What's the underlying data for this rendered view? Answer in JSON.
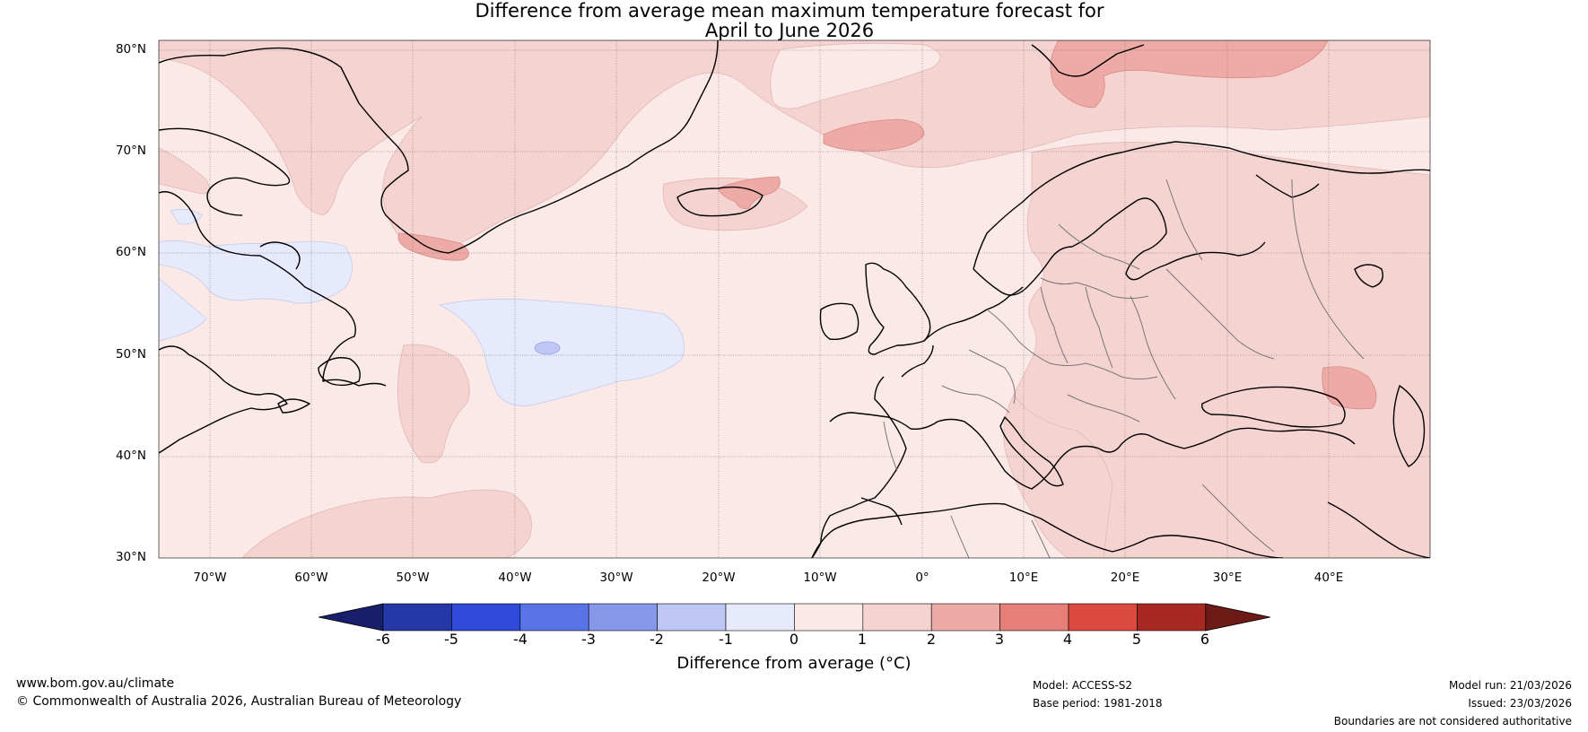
{
  "title": {
    "line1": "Difference from average mean maximum temperature forecast for",
    "line2": "April to June 2026"
  },
  "axes": {
    "lat_labels": [
      "80°N",
      "70°N",
      "60°N",
      "50°N",
      "40°N",
      "30°N"
    ],
    "lon_labels": [
      "70°W",
      "60°W",
      "50°W",
      "40°W",
      "30°W",
      "20°W",
      "10°W",
      "0°",
      "10°E",
      "20°E",
      "30°E",
      "40°E"
    ]
  },
  "colorbar": {
    "ticks": [
      "-6",
      "-5",
      "-4",
      "-3",
      "-2",
      "-1",
      "0",
      "1",
      "2",
      "3",
      "4",
      "5",
      "6"
    ],
    "label": "Difference from average (°C)",
    "colors": {
      "below_-6": "#18206b",
      "-6_-5": "#2438a8",
      "-5_-4": "#2f4ad8",
      "-4_-3": "#5a73e6",
      "-3_-2": "#8797ea",
      "-2_-1": "#bdc6f4",
      "-1_0": "#e7eafc",
      "0_1": "#fbe9e8",
      "1_2": "#f5d3d1",
      "2_3": "#eeaaa6",
      "3_4": "#e67f78",
      "4_5": "#db4a3e",
      "5_6": "#a82822",
      "above_6": "#6e1b18"
    }
  },
  "footer": {
    "website": "www.bom.gov.au/climate",
    "copyright": "© Commonwealth of Australia 2026, Australian Bureau of Meteorology",
    "model": "Model: ACCESS-S2",
    "base_period": "Base period: 1981-2018",
    "model_run": "Model run: 21/03/2026",
    "issued": "Issued: 23/03/2026",
    "disclaimer": "Boundaries are not considered authoritative"
  }
}
